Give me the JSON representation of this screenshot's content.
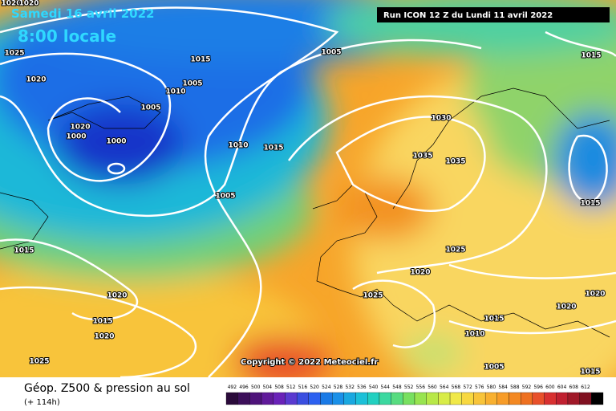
{
  "header": {
    "date": "Samedi 16 avril 2022",
    "time": "8:00 locale",
    "run": "Run ICON 12 Z du Lundi 11 avril 2022"
  },
  "copyright": "Copyright © 2022 Meteociel.fr",
  "isobar_labels": [
    "1020",
    "1020",
    "1025",
    "1020",
    "1015",
    "1005",
    "1005",
    "1010",
    "1005",
    "1020",
    "1000",
    "1000",
    "1010",
    "1015",
    "1005",
    "1030",
    "1035",
    "1035",
    "1015",
    "1015",
    "1015",
    "1025",
    "1020",
    "1025",
    "1020",
    "1020",
    "1015",
    "1020",
    "1020",
    "1015",
    "1010",
    "1025",
    "1005",
    "1015"
  ],
  "legend": {
    "title": "Géop. Z500 & pression au sol",
    "subtitle": "(+ 114h)",
    "scale": [
      "492",
      "496",
      "500",
      "504",
      "508",
      "512",
      "516",
      "520",
      "524",
      "528",
      "532",
      "536",
      "540",
      "544",
      "548",
      "552",
      "556",
      "560",
      "564",
      "568",
      "572",
      "576",
      "580",
      "584",
      "588",
      "592",
      "596",
      "600",
      "604",
      "608",
      "612"
    ]
  }
}
